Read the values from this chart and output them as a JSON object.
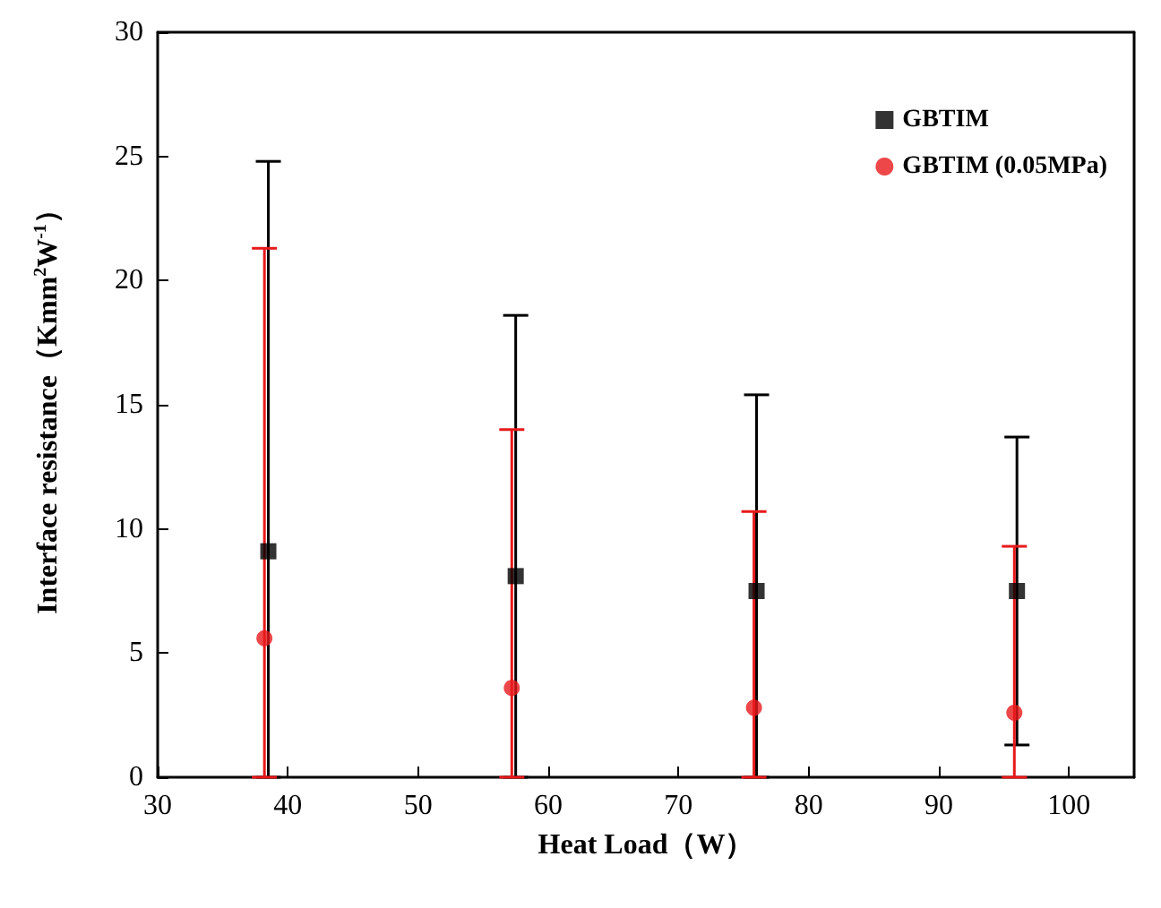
{
  "chart_data": {
    "type": "scatter",
    "xlabel": "Heat Load（W）",
    "ylabel": "Interface resistance（Kmm$^{2}$W$^{-1}$）",
    "xlim": [
      30,
      105
    ],
    "xticks": [
      30,
      40,
      50,
      60,
      70,
      80,
      90,
      100
    ],
    "ylim": [
      0,
      30
    ],
    "yticks": [
      0,
      5,
      10,
      15,
      20,
      25,
      30
    ],
    "series": [
      {
        "name": "GBTIM",
        "color": "#000000",
        "marker": "square",
        "x": [
          38.5,
          57.5,
          76,
          96
        ],
        "values": [
          9.1,
          8.1,
          7.5,
          7.5
        ],
        "errors": [
          [
            0,
            24.8
          ],
          [
            0,
            18.6
          ],
          [
            0,
            15.4
          ],
          [
            1.3,
            13.7
          ]
        ]
      },
      {
        "name": "GBTIM (0.05MPa)",
        "color": "#e8191b",
        "marker": "circle",
        "x": [
          38.2,
          57.2,
          75.8,
          95.8
        ],
        "values": [
          5.6,
          3.6,
          2.8,
          2.6
        ],
        "errors": [
          [
            0,
            21.3
          ],
          [
            0,
            14.0
          ],
          [
            0,
            10.7
          ],
          [
            0,
            9.3
          ]
        ]
      }
    ],
    "legend": "top right",
    "grid": false
  }
}
